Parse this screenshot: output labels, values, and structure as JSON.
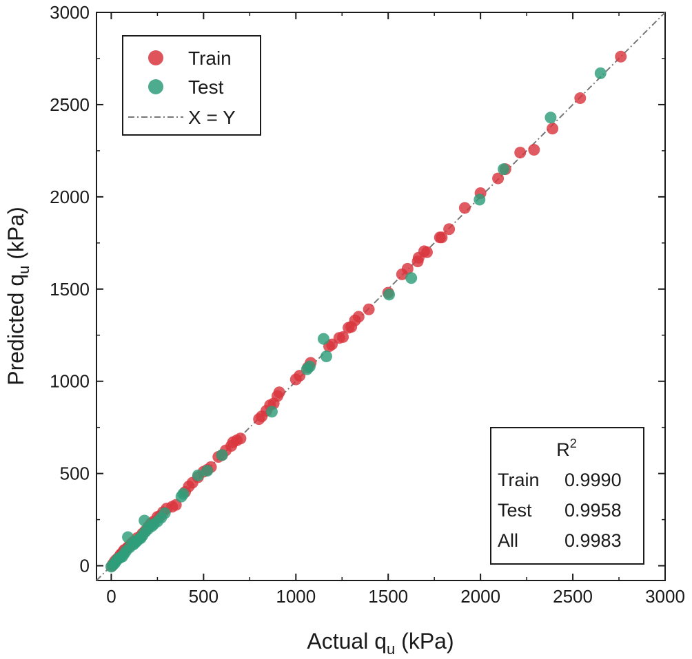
{
  "chart_data": {
    "type": "scatter",
    "xlabel_main": "Actual q",
    "xlabel_sub": "u",
    "xlabel_unit": "(kPa)",
    "ylabel_main": "Predicted  q",
    "ylabel_sub": "u",
    "ylabel_unit": "(kPa)",
    "xlim": [
      -80,
      3000
    ],
    "ylim": [
      -80,
      3000
    ],
    "x_ticks": [
      0,
      500,
      1000,
      1500,
      2000,
      2500,
      3000
    ],
    "y_ticks": [
      0,
      500,
      1000,
      1500,
      2000,
      2500,
      3000
    ],
    "x_tick_labels": [
      "0",
      "500",
      "1000",
      "1500",
      "2000",
      "2500",
      "3000"
    ],
    "y_tick_labels": [
      "0",
      "500",
      "1000",
      "1500",
      "2000",
      "2500",
      "3000"
    ],
    "grid": false,
    "legend_position": "top-left",
    "legend": [
      {
        "label": "Train",
        "kind": "marker",
        "color": "#d9363e"
      },
      {
        "label": "Test",
        "kind": "marker",
        "color": "#2e9e7a"
      },
      {
        "label": "X = Y",
        "kind": "line",
        "color": "#777777"
      }
    ],
    "series": [
      {
        "name": "Train",
        "color": "#d9363e",
        "points": [
          [
            2760,
            2760
          ],
          [
            2540,
            2535
          ],
          [
            2390,
            2370
          ],
          [
            2290,
            2255
          ],
          [
            2215,
            2240
          ],
          [
            2095,
            2100
          ],
          [
            2135,
            2150
          ],
          [
            2000,
            2020
          ],
          [
            1915,
            1940
          ],
          [
            1830,
            1825
          ],
          [
            1780,
            1780
          ],
          [
            1790,
            1780
          ],
          [
            1710,
            1700
          ],
          [
            1695,
            1705
          ],
          [
            1665,
            1670
          ],
          [
            1660,
            1650
          ],
          [
            1605,
            1610
          ],
          [
            1575,
            1580
          ],
          [
            1500,
            1480
          ],
          [
            1395,
            1390
          ],
          [
            1340,
            1350
          ],
          [
            1320,
            1330
          ],
          [
            1300,
            1295
          ],
          [
            1285,
            1290
          ],
          [
            1255,
            1240
          ],
          [
            1235,
            1235
          ],
          [
            1195,
            1200
          ],
          [
            1180,
            1190
          ],
          [
            1080,
            1100
          ],
          [
            1065,
            1075
          ],
          [
            1020,
            1030
          ],
          [
            1000,
            1010
          ],
          [
            910,
            940
          ],
          [
            900,
            920
          ],
          [
            880,
            880
          ],
          [
            860,
            870
          ],
          [
            840,
            840
          ],
          [
            815,
            810
          ],
          [
            800,
            795
          ],
          [
            700,
            690
          ],
          [
            680,
            680
          ],
          [
            660,
            670
          ],
          [
            650,
            650
          ],
          [
            620,
            625
          ],
          [
            600,
            600
          ],
          [
            580,
            590
          ],
          [
            540,
            535
          ],
          [
            520,
            520
          ],
          [
            500,
            510
          ],
          [
            470,
            480
          ],
          [
            440,
            450
          ],
          [
            420,
            430
          ],
          [
            400,
            400
          ],
          [
            350,
            330
          ],
          [
            330,
            320
          ],
          [
            300,
            310
          ],
          [
            280,
            290
          ],
          [
            265,
            270
          ],
          [
            250,
            265
          ],
          [
            230,
            240
          ],
          [
            215,
            230
          ],
          [
            200,
            210
          ],
          [
            185,
            190
          ],
          [
            170,
            175
          ],
          [
            160,
            160
          ],
          [
            140,
            150
          ],
          [
            120,
            130
          ],
          [
            110,
            120
          ],
          [
            100,
            110
          ],
          [
            90,
            100
          ],
          [
            80,
            90
          ],
          [
            70,
            85
          ],
          [
            60,
            70
          ],
          [
            50,
            60
          ],
          [
            40,
            45
          ],
          [
            30,
            35
          ],
          [
            20,
            25
          ],
          [
            10,
            10
          ],
          [
            5,
            0
          ]
        ]
      },
      {
        "name": "Test",
        "color": "#2e9e7a",
        "points": [
          [
            2650,
            2670
          ],
          [
            2380,
            2430
          ],
          [
            2125,
            2150
          ],
          [
            1995,
            1985
          ],
          [
            1625,
            1560
          ],
          [
            1505,
            1470
          ],
          [
            1150,
            1230
          ],
          [
            1165,
            1135
          ],
          [
            1075,
            1080
          ],
          [
            1060,
            1065
          ],
          [
            870,
            835
          ],
          [
            600,
            600
          ],
          [
            520,
            515
          ],
          [
            470,
            490
          ],
          [
            390,
            390
          ],
          [
            380,
            375
          ],
          [
            290,
            285
          ],
          [
            270,
            260
          ],
          [
            250,
            240
          ],
          [
            230,
            225
          ],
          [
            220,
            215
          ],
          [
            200,
            200
          ],
          [
            180,
            245
          ],
          [
            185,
            185
          ],
          [
            170,
            165
          ],
          [
            160,
            150
          ],
          [
            150,
            145
          ],
          [
            140,
            135
          ],
          [
            130,
            125
          ],
          [
            120,
            115
          ],
          [
            100,
            100
          ],
          [
            90,
            155
          ],
          [
            80,
            80
          ],
          [
            70,
            65
          ],
          [
            60,
            50
          ],
          [
            50,
            45
          ],
          [
            40,
            40
          ],
          [
            30,
            30
          ],
          [
            20,
            15
          ],
          [
            10,
            5
          ],
          [
            0,
            -5
          ]
        ]
      }
    ],
    "reference_line": {
      "name": "X = Y",
      "slope": 1,
      "intercept": 0
    },
    "r2_table": {
      "header_main": "R",
      "header_sup": "2",
      "rows": [
        {
          "label": "Train",
          "value": "0.9990"
        },
        {
          "label": "Test",
          "value": "0.9958"
        },
        {
          "label": "All",
          "value": "0.9983"
        }
      ]
    }
  }
}
